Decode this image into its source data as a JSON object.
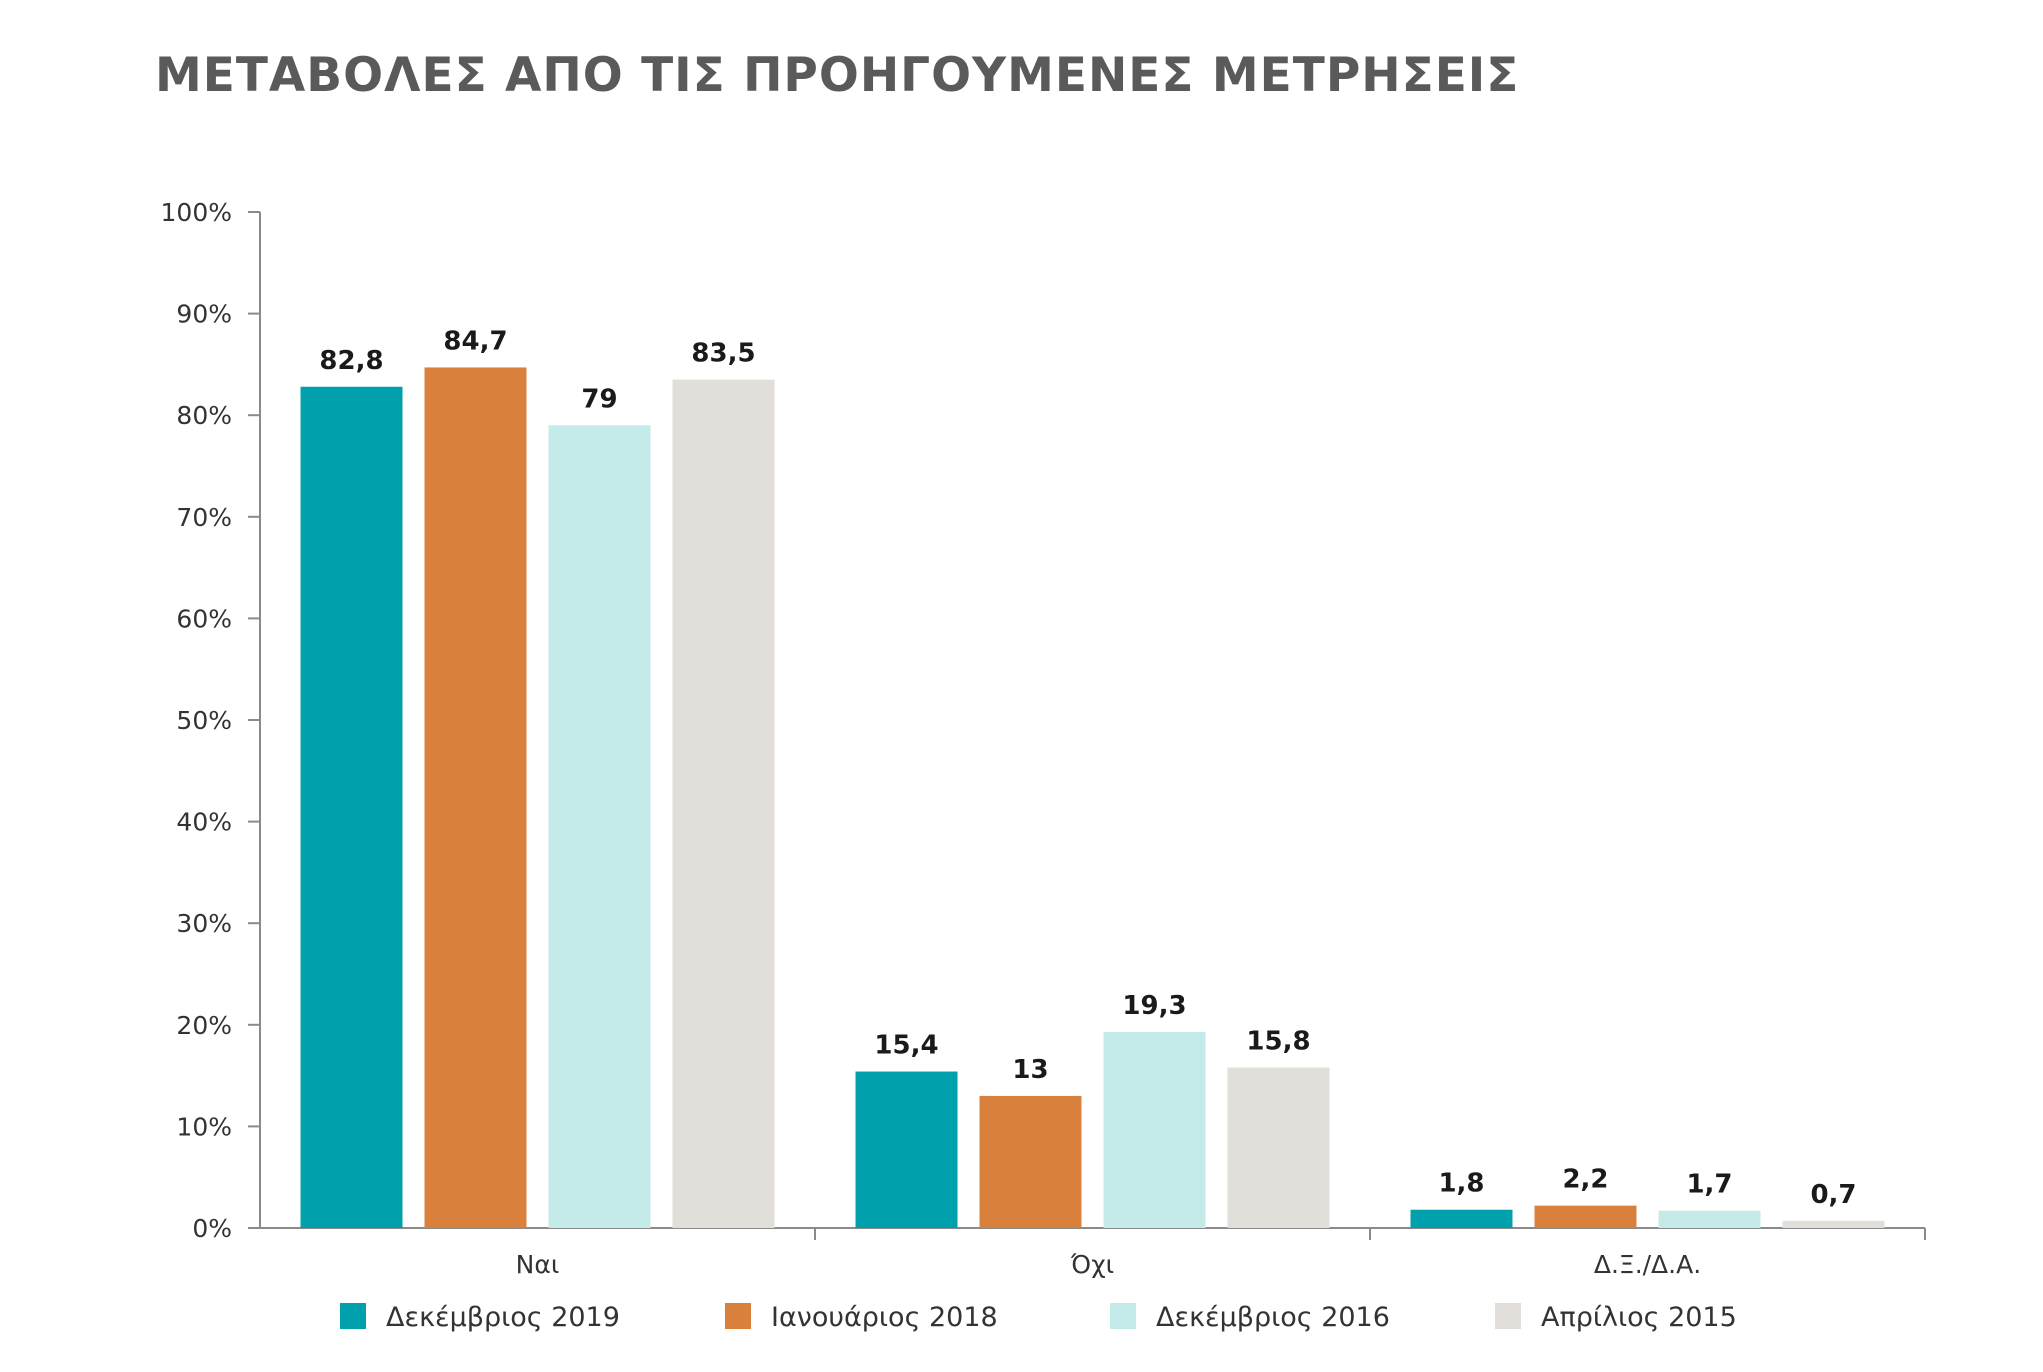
{
  "chart_data": {
    "type": "bar",
    "title": "ΜΕΤΑΒΟΛΕΣ ΑΠΟ ΤΙΣ ΠΡΟΗΓΟΥΜΕΝΕΣ ΜΕΤΡΗΣΕΙΣ",
    "categories": [
      "Ναι",
      "Όχι",
      "Δ.Ξ./Δ.Α."
    ],
    "series": [
      {
        "name": "Δεκέμβριος 2019",
        "color": "#00A0AC",
        "values": [
          82.8,
          15.4,
          1.8
        ],
        "labels": [
          "82,8",
          "15,4",
          "1,8"
        ]
      },
      {
        "name": "Ιανουάριος 2018",
        "color": "#D9803D",
        "values": [
          84.7,
          13,
          2.2
        ],
        "labels": [
          "84,7",
          "13",
          "2,2"
        ]
      },
      {
        "name": "Δεκέμβριος 2016",
        "color": "#C5EAEA",
        "values": [
          79,
          19.3,
          1.7
        ],
        "labels": [
          "79",
          "19,3",
          "1,7"
        ]
      },
      {
        "name": "Απρίλιος 2015",
        "color": "#E2DED9",
        "values": [
          83.5,
          15.8,
          0.7
        ],
        "labels": [
          "83,5",
          "15,8",
          "0,7"
        ]
      }
    ],
    "yticks": [
      "0%",
      "10%",
      "20%",
      "30%",
      "40%",
      "50%",
      "60%",
      "70%",
      "80%",
      "90%",
      "100%"
    ],
    "ylim": [
      0,
      100
    ],
    "grid": false,
    "legend": "bottom"
  }
}
